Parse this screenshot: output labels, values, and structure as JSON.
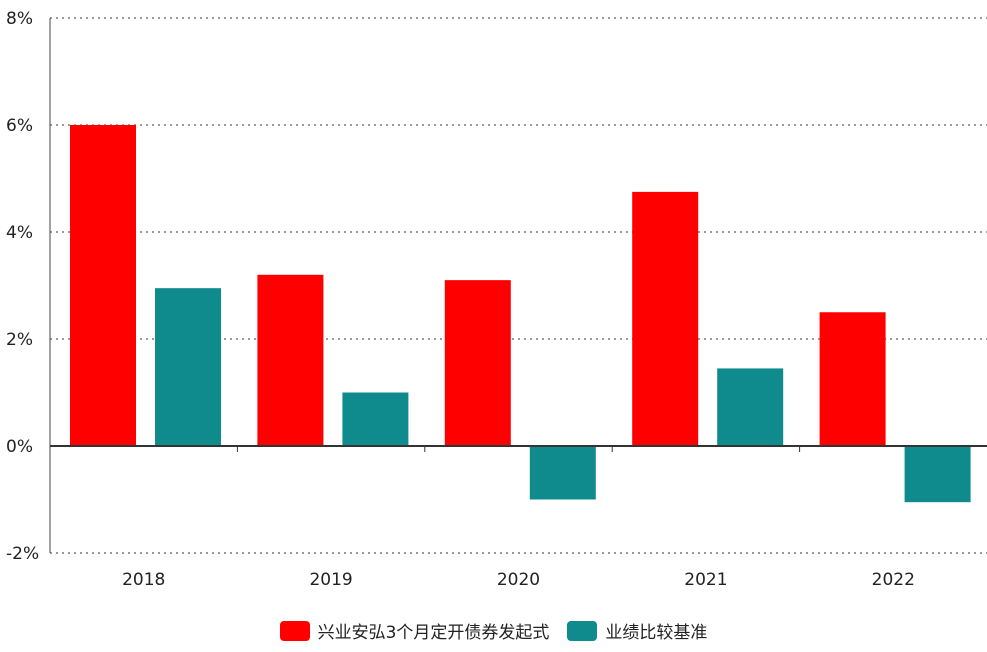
{
  "chart_data": {
    "type": "bar",
    "categories": [
      "2018",
      "2019",
      "2020",
      "2021",
      "2022"
    ],
    "series": [
      {
        "name": "兴业安弘3个月定开债券发起式",
        "values": [
          6.0,
          3.2,
          3.1,
          4.75,
          2.5
        ],
        "color": "#ff0000"
      },
      {
        "name": "业绩比较基准",
        "values": [
          2.95,
          1.0,
          -1.0,
          1.45,
          -1.05
        ],
        "color": "#0f8b8d"
      }
    ],
    "ylim": [
      -2,
      8
    ],
    "yticks": [
      -2,
      0,
      2,
      4,
      6,
      8
    ],
    "ytick_labels": [
      "-2%",
      "0%",
      "2%",
      "4%",
      "6%",
      "8%"
    ],
    "grid": true,
    "legend_position": "bottom-center",
    "title": "",
    "xlabel": "",
    "ylabel": ""
  }
}
